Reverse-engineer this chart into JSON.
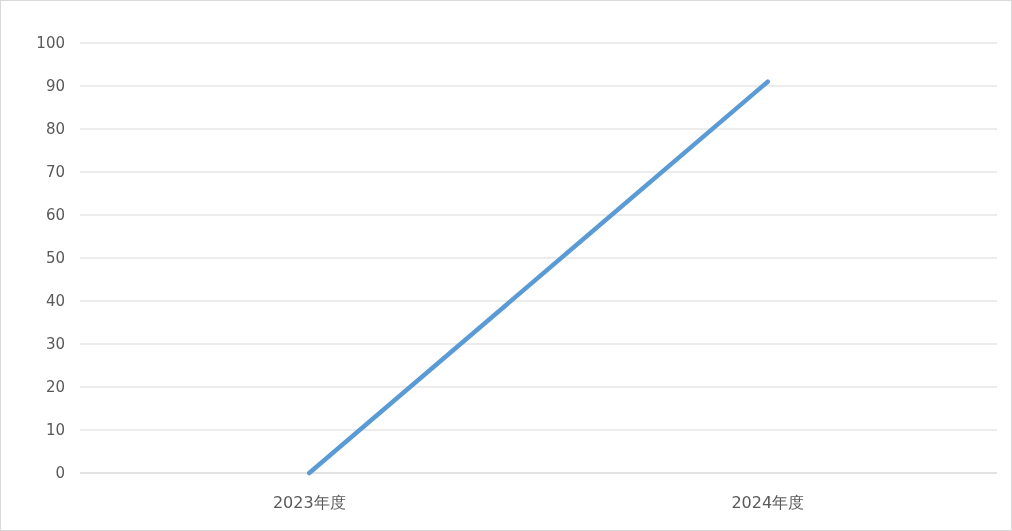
{
  "chart_data": {
    "type": "line",
    "categories": [
      "2023年度",
      "2024年度"
    ],
    "series": [
      {
        "color": "#5b9bd5",
        "values": [
          0,
          91
        ]
      }
    ],
    "ylim": [
      0,
      100
    ],
    "yticks": [
      0,
      10,
      20,
      30,
      40,
      50,
      60,
      70,
      80,
      90,
      100
    ],
    "grid": "y",
    "marker": "none",
    "line_style": "solid"
  }
}
